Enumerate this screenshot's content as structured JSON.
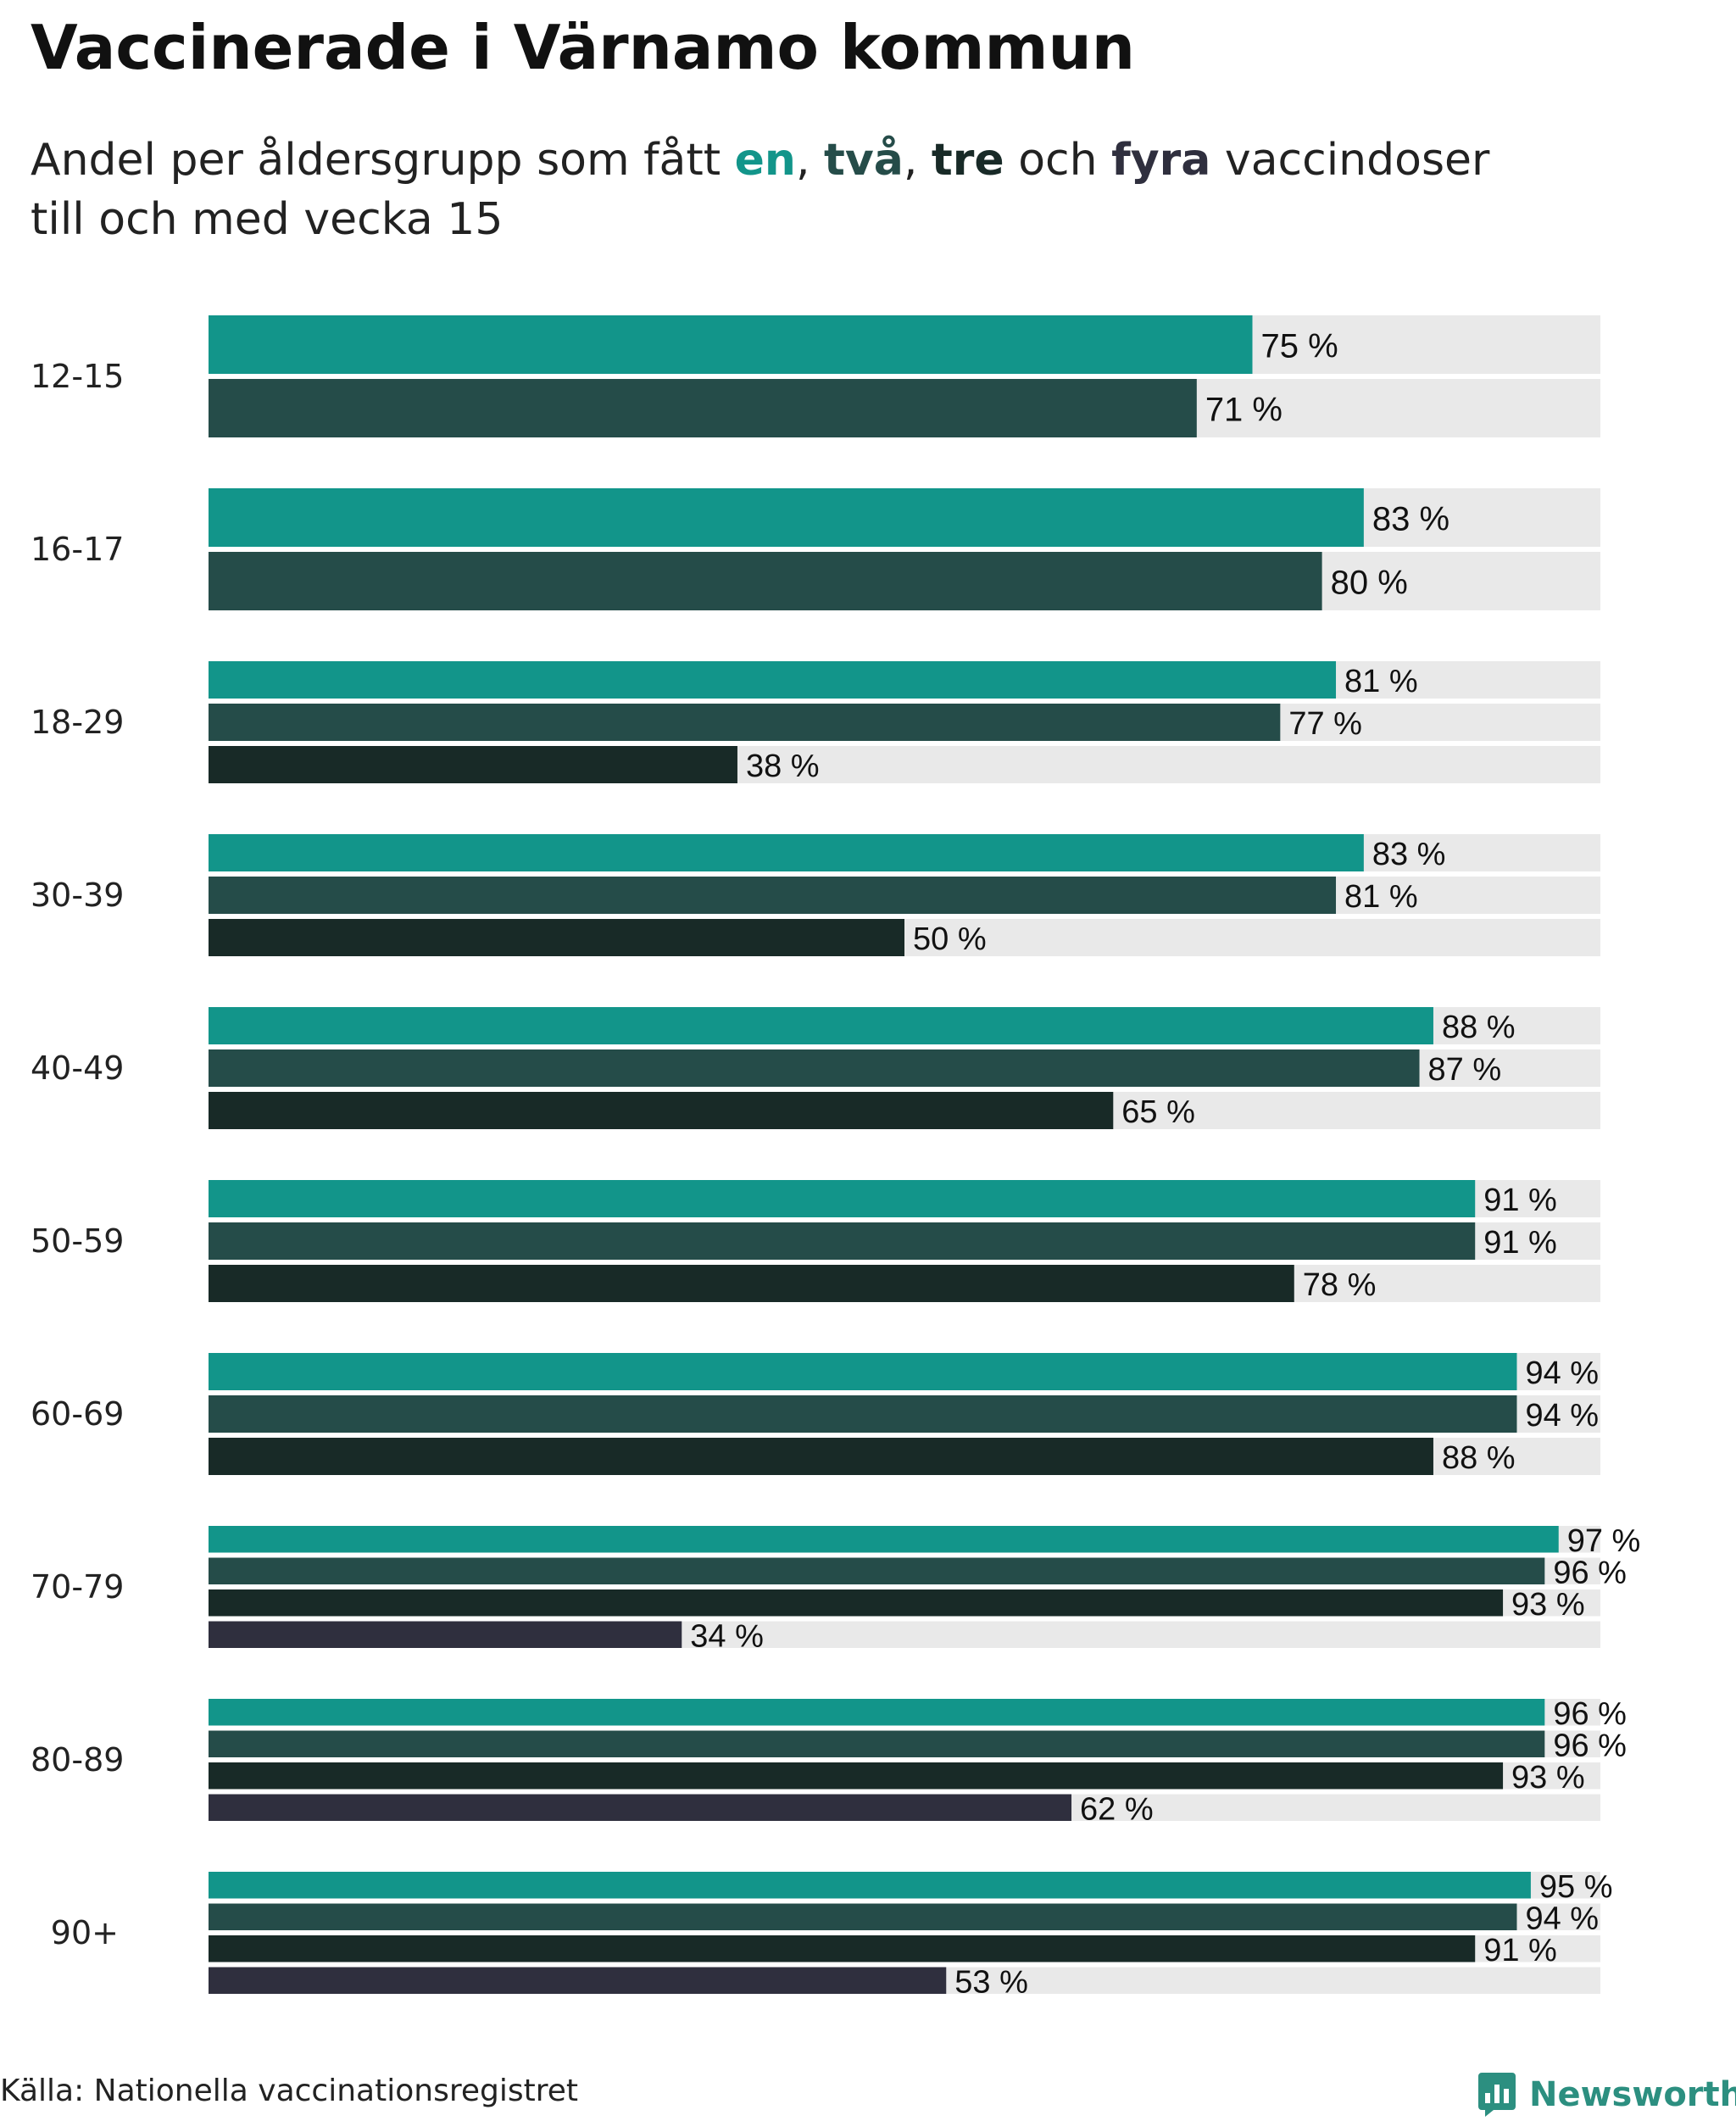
{
  "title": "Vaccinerade i Värnamo kommun",
  "subtitle": {
    "prefix": "Andel per åldersgrupp som fått ",
    "k1": "en",
    "sep1": ", ",
    "k2": "två",
    "sep2": ", ",
    "k3": "tre",
    "sep3": " och ",
    "k4": "fyra",
    "suffix": " vaccindoser",
    "line2": "till och med vecka 15"
  },
  "source": "Källa: Nationella vaccinationsregistret",
  "brand": "Newsworthy",
  "colors": {
    "dose1": "#12958a",
    "dose2": "#254c49",
    "dose3": "#182a27",
    "dose4": "#2f2f3e",
    "track": "#e9e9e9",
    "brand": "#2c8f80"
  },
  "chart_data": {
    "type": "bar",
    "orientation": "horizontal",
    "xlim": [
      0,
      100
    ],
    "value_suffix": " %",
    "categories": [
      "12-15",
      "16-17",
      "18-29",
      "30-39",
      "40-49",
      "50-59",
      "60-69",
      "70-79",
      "80-89",
      "90+"
    ],
    "series": [
      {
        "name": "en",
        "values": [
          75,
          83,
          81,
          83,
          88,
          91,
          94,
          97,
          96,
          95
        ]
      },
      {
        "name": "två",
        "values": [
          71,
          80,
          77,
          81,
          87,
          91,
          94,
          96,
          96,
          94
        ]
      },
      {
        "name": "tre",
        "values": [
          null,
          null,
          38,
          50,
          65,
          78,
          88,
          93,
          93,
          91
        ]
      },
      {
        "name": "fyra",
        "values": [
          null,
          null,
          null,
          null,
          null,
          null,
          null,
          34,
          62,
          53
        ]
      }
    ]
  }
}
